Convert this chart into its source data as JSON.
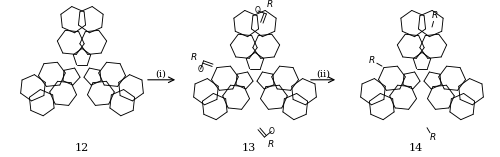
{
  "figsize": [
    5.0,
    1.57
  ],
  "dpi": 100,
  "background_color": "#ffffff",
  "compounds": [
    "12",
    "13",
    "14"
  ],
  "arrow1_label": "(i)",
  "arrow2_label": "(ii)",
  "lw": 0.65
}
